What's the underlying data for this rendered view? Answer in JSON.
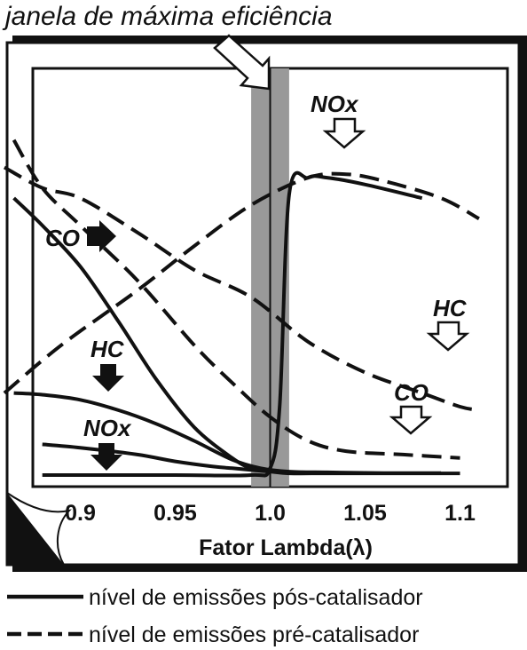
{
  "title": "janela de máxima eficiência",
  "x_axis": {
    "label": "Fator Lambda(λ)",
    "ticks": [
      "0.9",
      "0.95",
      "1.0",
      "1.05",
      "1.1"
    ]
  },
  "annotations": {
    "nox_pre": "NOx",
    "hc_pre": "HC",
    "co_pre": "CO",
    "co_post": "CO",
    "hc_post": "HC",
    "nox_post": "NOx"
  },
  "legend": {
    "solid": "nível de emissões pós-catalisador",
    "dashed": "nível de emissões pré-catalisador"
  },
  "colors": {
    "line": "#111111",
    "window_band": "#999999",
    "frame_shadow": "#111111"
  },
  "chart_data": {
    "type": "line",
    "xlim": [
      0.875,
      1.125
    ],
    "ylim": [
      0,
      1
    ],
    "xticks": [
      0.9,
      0.95,
      1.0,
      1.05,
      1.1
    ],
    "efficiency_window": [
      0.99,
      1.01
    ],
    "series": [
      {
        "style": "solid",
        "x": [
          0.88,
          0.9,
          0.93,
          0.95,
          0.97,
          0.98,
          0.99,
          1.0,
          1.01,
          1.03,
          1.06,
          1.08,
          1.1
        ],
        "y": [
          0.09,
          0.08,
          0.06,
          0.04,
          0.025,
          0.02,
          0.015,
          0.01,
          0.005,
          0.005,
          0.005,
          0.005,
          0.005
        ]
      },
      {
        "style": "solid",
        "x": [
          0.865,
          0.88,
          0.9,
          0.92,
          0.94,
          0.96,
          0.98,
          0.995,
          1.01,
          1.03,
          1.06,
          1.09
        ],
        "y": [
          0.24,
          0.235,
          0.22,
          0.19,
          0.15,
          0.1,
          0.045,
          0.02,
          0.01,
          0.008,
          0.006,
          0.006
        ]
      },
      {
        "style": "solid",
        "x": [
          0.865,
          0.88,
          0.9,
          0.92,
          0.94,
          0.96,
          0.98,
          0.99,
          1.0
        ],
        "y": [
          0.81,
          0.73,
          0.61,
          0.45,
          0.28,
          0.14,
          0.05,
          0.02,
          0.01
        ]
      },
      {
        "style": "solid",
        "x": [
          0.88,
          0.95,
          0.99,
          1.0,
          1.005,
          1.01,
          1.02,
          1.03,
          1.05,
          1.08
        ],
        "y": [
          0.0,
          0.0,
          0.0,
          0.02,
          0.2,
          0.82,
          0.87,
          0.87,
          0.85,
          0.81
        ]
      },
      {
        "style": "dashed",
        "x": [
          0.86,
          0.88,
          0.9,
          0.93,
          0.96,
          0.99,
          1.02,
          1.05,
          1.08,
          1.1,
          1.11
        ],
        "y": [
          0.9,
          0.84,
          0.81,
          0.71,
          0.6,
          0.52,
          0.39,
          0.3,
          0.24,
          0.2,
          0.19
        ]
      },
      {
        "style": "dashed",
        "x": [
          0.865,
          0.88,
          0.9,
          0.93,
          0.96,
          0.98,
          1.0,
          1.02,
          1.04,
          1.07,
          1.1
        ],
        "y": [
          0.98,
          0.84,
          0.73,
          0.57,
          0.38,
          0.27,
          0.17,
          0.1,
          0.07,
          0.06,
          0.05
        ]
      },
      {
        "style": "dashed",
        "x": [
          0.86,
          0.89,
          0.93,
          0.96,
          0.99,
          1.02,
          1.04,
          1.06,
          1.09,
          1.11
        ],
        "y": [
          0.24,
          0.38,
          0.54,
          0.67,
          0.79,
          0.87,
          0.88,
          0.86,
          0.81,
          0.75
        ]
      }
    ]
  }
}
